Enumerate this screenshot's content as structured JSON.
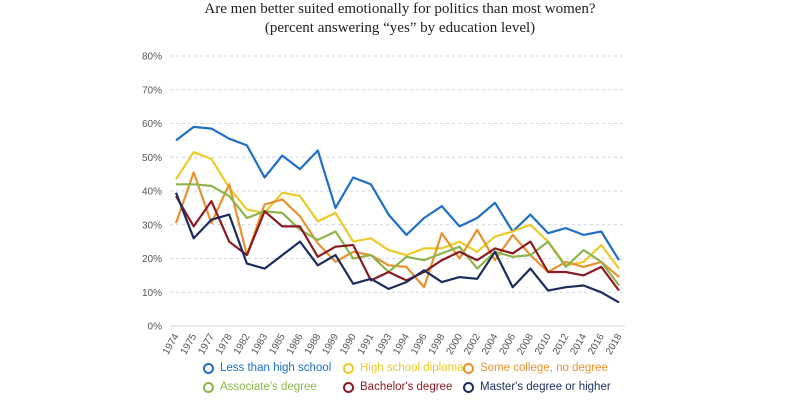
{
  "chart_data": {
    "type": "line",
    "title": "Are men better suited emotionally for politics than most women?",
    "subtitle": "(percent answering “yes” by education level)",
    "xlabel": "",
    "ylabel": "",
    "ylim": [
      0,
      80
    ],
    "yticks": [
      "0%",
      "10%",
      "20%",
      "30%",
      "40%",
      "50%",
      "60%",
      "70%",
      "80%"
    ],
    "grid": true,
    "legend_position": "bottom",
    "categories": [
      "1974",
      "1975",
      "1977",
      "1978",
      "1982",
      "1983",
      "1985",
      "1986",
      "1988",
      "1989",
      "1990",
      "1991",
      "1993",
      "1994",
      "1996",
      "1998",
      "2000",
      "2002",
      "2004",
      "2006",
      "2008",
      "2010",
      "2012",
      "2014",
      "2016",
      "2018"
    ],
    "series": [
      {
        "name": "Less than high school",
        "color": "#1f6fc5",
        "values": [
          55,
          59,
          58.5,
          55.5,
          53.5,
          44,
          50.5,
          46.5,
          52,
          35,
          44,
          42,
          33,
          27,
          32,
          35.5,
          29.5,
          32,
          36.5,
          28,
          33,
          27.5,
          29,
          27,
          28,
          19.5
        ]
      },
      {
        "name": "High school diploma",
        "color": "#eacb2a",
        "values": [
          43.5,
          51.5,
          49.5,
          41,
          34.5,
          33.5,
          39.5,
          38.5,
          31,
          33.5,
          25,
          26,
          22.5,
          21,
          23,
          23,
          25,
          22,
          26.5,
          28,
          30,
          25,
          18,
          19,
          24,
          17
        ]
      },
      {
        "name": "Some college, no degree",
        "color": "#e8922f",
        "values": [
          30.5,
          45.5,
          30.5,
          42,
          21,
          36,
          37.5,
          32.5,
          24.5,
          19,
          22,
          21,
          18,
          17.5,
          11.5,
          27.5,
          20,
          28.5,
          19.5,
          27,
          21,
          16,
          19,
          17.5,
          19,
          14.5
        ]
      },
      {
        "name": "Associate's degree",
        "color": "#8db54c",
        "values": [
          42,
          42,
          41.5,
          38.5,
          32,
          34,
          33.5,
          28.5,
          25.5,
          28,
          20,
          21,
          16,
          20.5,
          19.5,
          21.5,
          23.5,
          17,
          22,
          20.5,
          21,
          25,
          17.5,
          22.5,
          19,
          12
        ]
      },
      {
        "name": "Bachelor's degree",
        "color": "#8b1c24",
        "values": [
          38.5,
          29.5,
          37,
          25,
          21,
          34,
          29.5,
          29.5,
          20.5,
          23.5,
          24,
          13.5,
          16,
          13.5,
          16,
          19.5,
          22,
          19.5,
          23,
          21.5,
          25,
          16,
          16,
          15,
          17.5,
          10.5
        ]
      },
      {
        "name": "Master's degree or higher",
        "color": "#1b2d5c",
        "values": [
          39.5,
          26,
          31.5,
          33,
          18.5,
          17,
          21,
          25,
          18,
          21,
          12.5,
          14,
          11,
          13,
          16.5,
          13,
          14.5,
          14,
          22,
          11.5,
          17,
          10.5,
          11.5,
          12,
          10,
          7
        ]
      }
    ]
  }
}
